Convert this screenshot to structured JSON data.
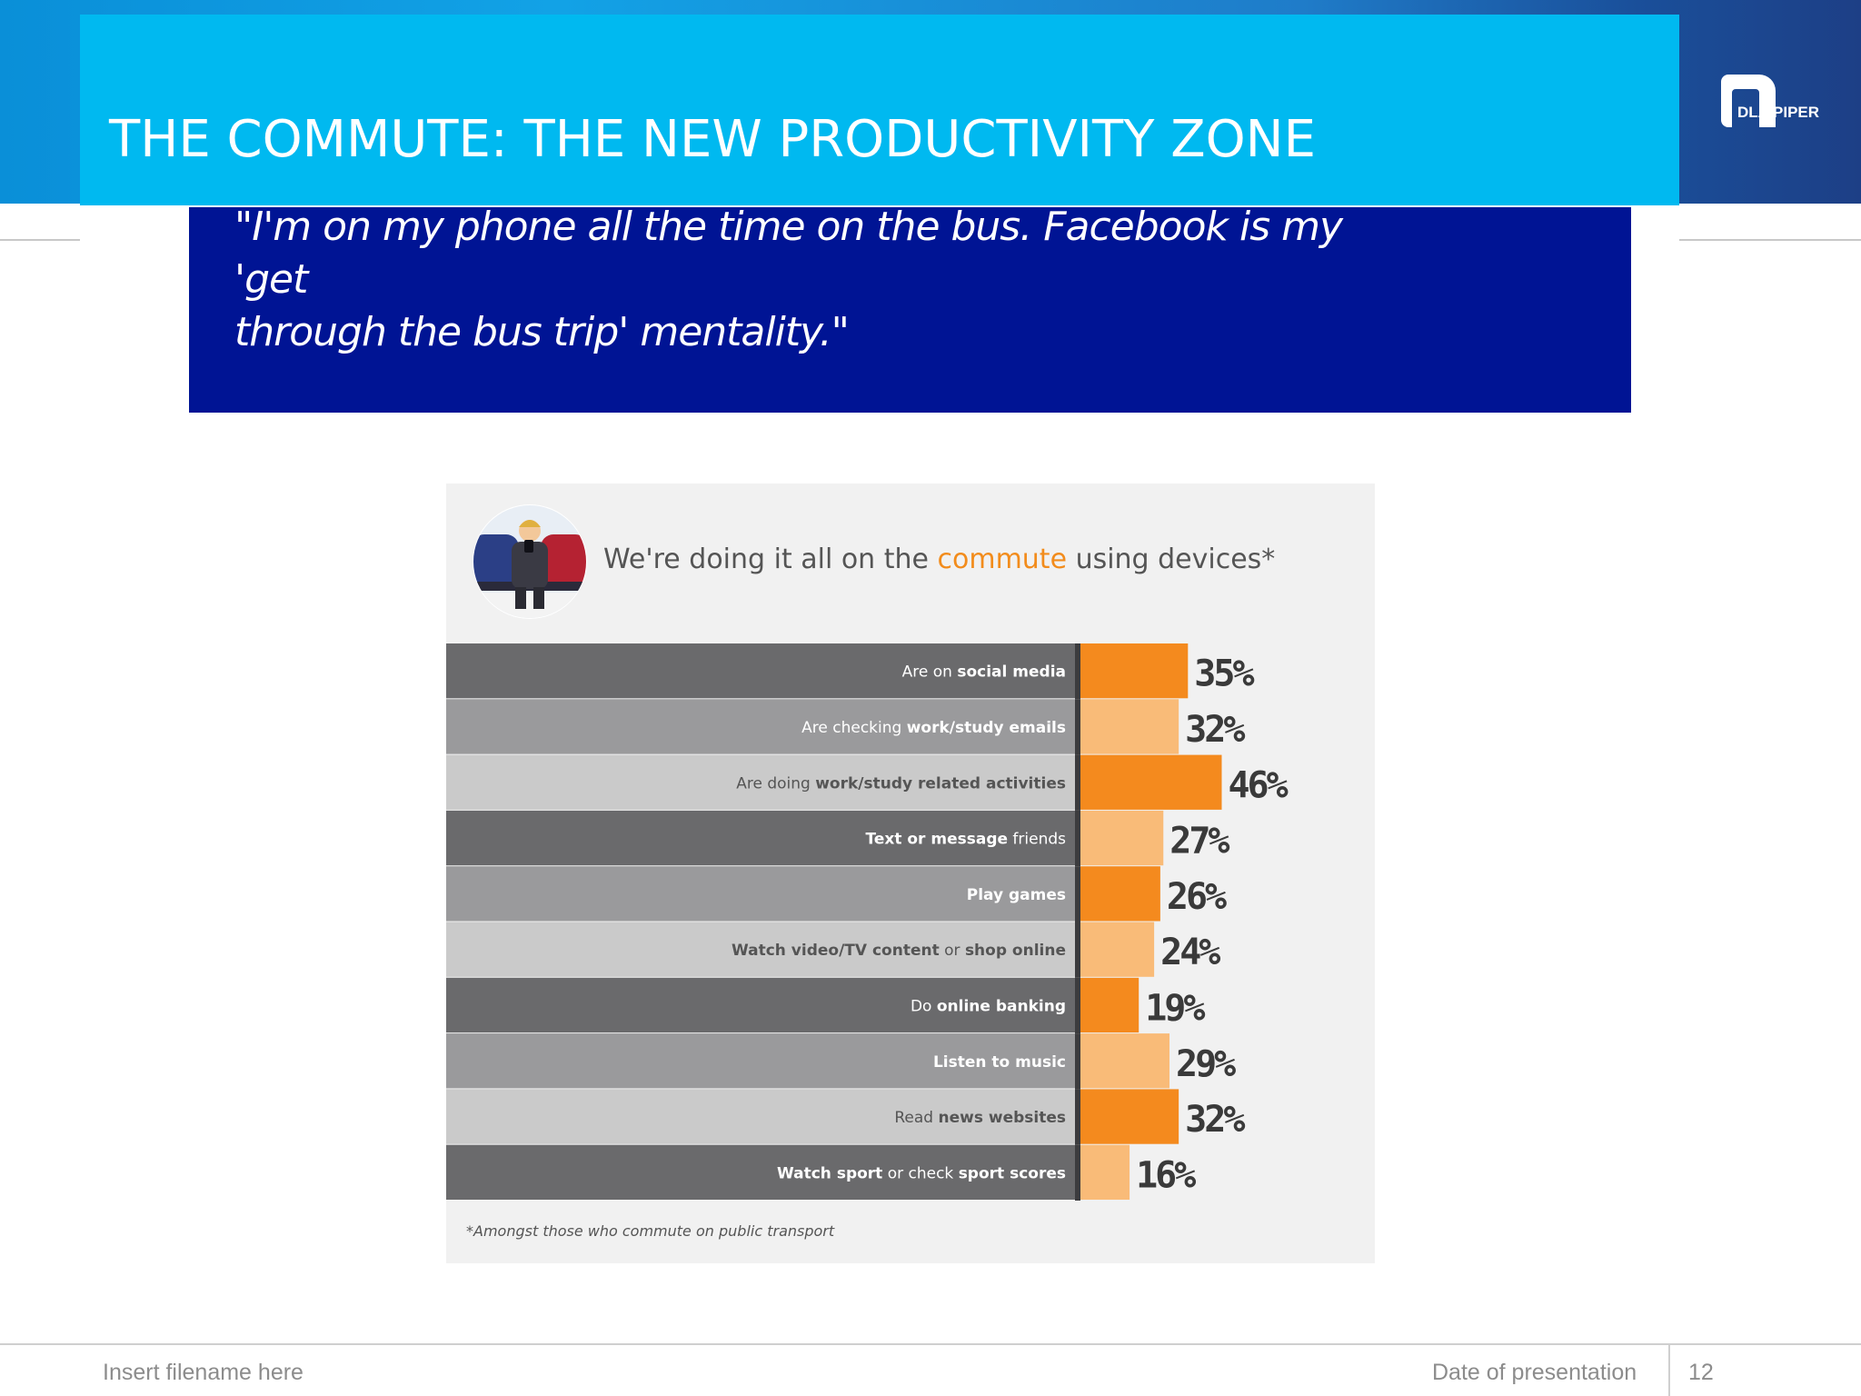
{
  "slide": {
    "title": "THE COMMUTE: THE NEW PRODUCTIVITY ZONE",
    "logo_text": "DLA PIPER",
    "quote_line1": "\"I'm on my phone all the time on the bus. Facebook is my 'get",
    "quote_line2": "through the bus trip' mentality.\""
  },
  "infographic": {
    "title_before": "We're doing it all on the ",
    "title_highlight": "commute",
    "title_after": " using devices*",
    "footnote": "*Amongst those who commute on public transport"
  },
  "footer": {
    "filename": "Insert filename here",
    "date": "Date of presentation",
    "page_number": "12"
  },
  "colors": {
    "header_bg": "#00b9f0",
    "quote_bg": "#001494",
    "bar_dark": "#f48a1e",
    "bar_light": "#f9bb78",
    "highlight": "#f28c1c"
  },
  "chart_data": {
    "type": "bar",
    "orientation": "horizontal",
    "categories": [
      "Are on social media",
      "Are checking work/study emails",
      "Are doing work/study related activities",
      "Text or message friends",
      "Play games",
      "Watch video/TV content or shop online",
      "Do online banking",
      "Listen to music",
      "Read news websites",
      "Watch sport or check sport scores"
    ],
    "label_parts": [
      [
        {
          "t": "Are on ",
          "b": false
        },
        {
          "t": "social media",
          "b": true
        }
      ],
      [
        {
          "t": "Are checking ",
          "b": false
        },
        {
          "t": "work/study emails",
          "b": true
        }
      ],
      [
        {
          "t": "Are doing ",
          "b": false
        },
        {
          "t": "work/study related activities",
          "b": true
        }
      ],
      [
        {
          "t": "Text or message",
          "b": true
        },
        {
          "t": " friends",
          "b": false
        }
      ],
      [
        {
          "t": "Play games",
          "b": true
        }
      ],
      [
        {
          "t": "Watch video/TV content",
          "b": true
        },
        {
          "t": " or ",
          "b": false
        },
        {
          "t": "shop online",
          "b": true
        }
      ],
      [
        {
          "t": "Do ",
          "b": false
        },
        {
          "t": "online banking",
          "b": true
        }
      ],
      [
        {
          "t": "Listen to music",
          "b": true
        }
      ],
      [
        {
          "t": "Read ",
          "b": false
        },
        {
          "t": "news websites",
          "b": true
        }
      ],
      [
        {
          "t": "Watch sport",
          "b": true
        },
        {
          "t": " or check ",
          "b": false
        },
        {
          "t": "sport scores",
          "b": true
        }
      ]
    ],
    "values": [
      35,
      32,
      46,
      27,
      26,
      24,
      19,
      29,
      32,
      16
    ],
    "value_labels": [
      "35%",
      "32%",
      "46%",
      "27%",
      "26%",
      "24%",
      "19%",
      "29%",
      "32%",
      "16%"
    ],
    "bar_shades": [
      "dark",
      "light",
      "dark",
      "light",
      "dark",
      "light",
      "dark",
      "light",
      "dark",
      "light"
    ],
    "row_shades": [
      "dark",
      "mid",
      "light",
      "dark",
      "mid",
      "light",
      "dark",
      "mid",
      "light",
      "dark"
    ],
    "unit": "%",
    "title": "We're doing it all on the commute using devices*",
    "xlabel": "",
    "ylabel": "",
    "grid": false,
    "legend": "none"
  }
}
